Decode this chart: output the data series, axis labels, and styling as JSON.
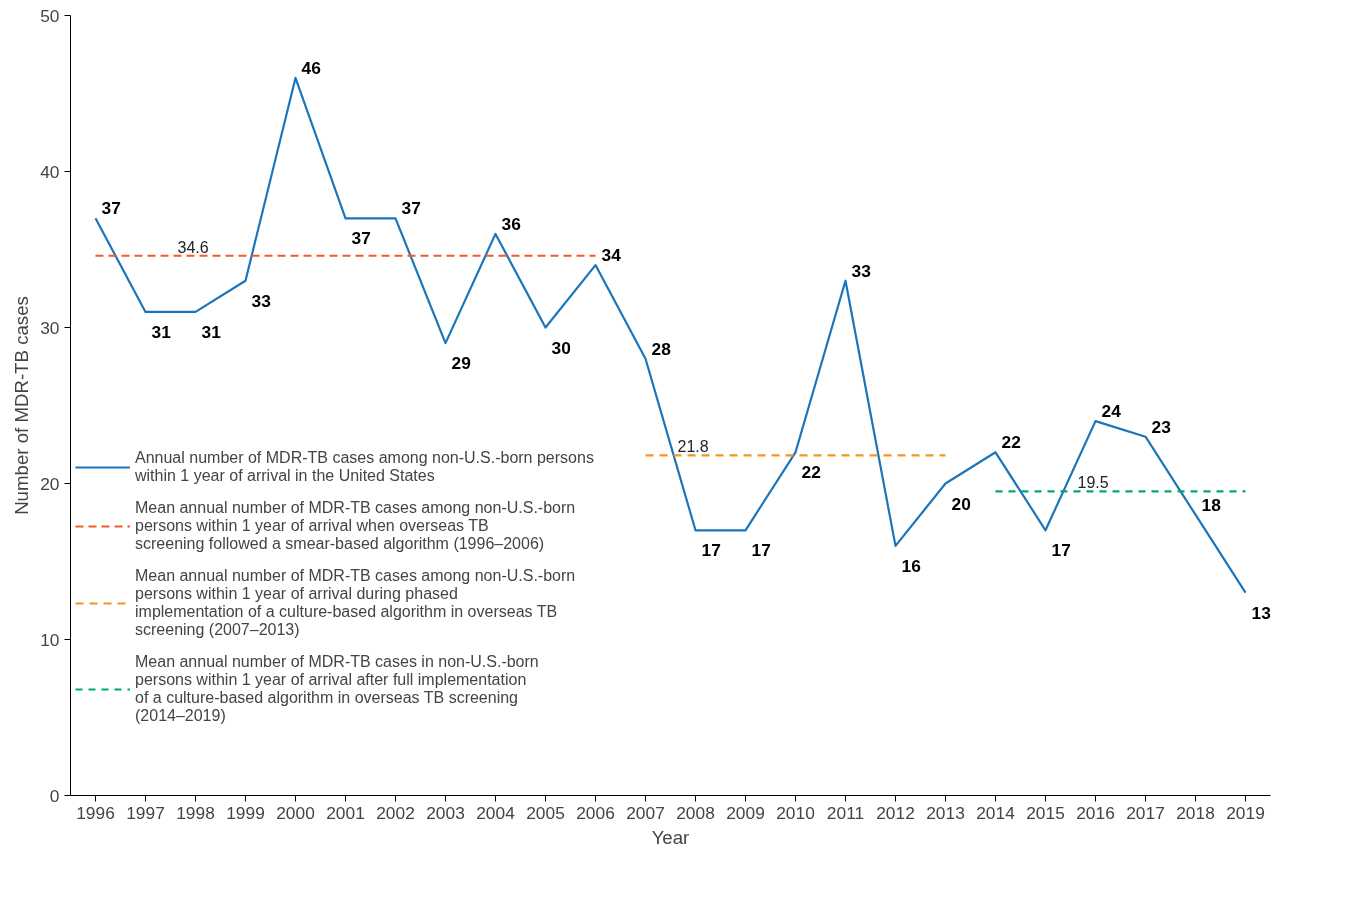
{
  "chart_data": {
    "type": "line",
    "xlabel": "Year",
    "ylabel": "Number of MDR-TB cases",
    "categories": [
      "1996",
      "1997",
      "1998",
      "1999",
      "2000",
      "2001",
      "2002",
      "2003",
      "2004",
      "2005",
      "2006",
      "2007",
      "2008",
      "2009",
      "2010",
      "2011",
      "2012",
      "2013",
      "2014",
      "2015",
      "2016",
      "2017",
      "2018",
      "2019"
    ],
    "ylim": [
      0,
      50
    ],
    "yticks": [
      0,
      10,
      20,
      30,
      40,
      50
    ],
    "grid": false,
    "legend": "left",
    "marker": "none",
    "series": [
      {
        "name": "Annual number of MDR-TB cases among non-U.S.-born persons within 1 year of arrival in the United States",
        "color": "#1b75bb",
        "line_style": "solid",
        "values": [
          37,
          31,
          31,
          33,
          46,
          37,
          37,
          29,
          36,
          30,
          34,
          28,
          17,
          17,
          22,
          33,
          16,
          20,
          22,
          17,
          24,
          23,
          18,
          13
        ],
        "value_labels": [
          "37",
          "31",
          "31",
          "33",
          "46",
          "37",
          "37",
          "29",
          "36",
          "30",
          "34",
          "28",
          "17",
          "17",
          "22",
          "33",
          "16",
          "20",
          "22",
          "17",
          "24",
          "23",
          "18",
          "13"
        ]
      },
      {
        "name": "Mean annual number of MDR-TB cases among non-U.S.-born persons within 1 year of arrival when overseas TB screening followed a smear-based algorithm (1996–2006)",
        "color": "#f15a29",
        "line_style": "dashed",
        "values": [
          34.6,
          34.6,
          34.6,
          34.6,
          34.6,
          34.6,
          34.6,
          34.6,
          34.6,
          34.6,
          34.6,
          null,
          null,
          null,
          null,
          null,
          null,
          null,
          null,
          null,
          null,
          null,
          null,
          null
        ]
      },
      {
        "name": "Mean annual number of MDR-TB cases among non-U.S.-born persons within 1 year of arrival during phased implementation of a culture-based algorithm in overseas TB screening (2007–2013)",
        "color": "#f7941d",
        "line_style": "dashed",
        "values": [
          null,
          null,
          null,
          null,
          null,
          null,
          null,
          null,
          null,
          null,
          null,
          21.8,
          21.8,
          21.8,
          21.8,
          21.8,
          21.8,
          21.8,
          null,
          null,
          null,
          null,
          null,
          null
        ]
      },
      {
        "name": "Mean annual number of MDR-TB cases in non-U.S.-born persons within 1 year of arrival after full implementation of a culture-based algorithm in overseas TB screening (2014–2019)",
        "color": "#00a870",
        "line_style": "dashed",
        "values": [
          null,
          null,
          null,
          null,
          null,
          null,
          null,
          null,
          null,
          null,
          null,
          null,
          null,
          null,
          null,
          null,
          null,
          null,
          19.5,
          19.5,
          19.5,
          19.5,
          19.5,
          19.5
        ]
      }
    ],
    "annotations": [
      {
        "text": "34.6",
        "x": "1998",
        "y": 34.6
      },
      {
        "text": "21.8",
        "x": "2008",
        "y": 21.8
      },
      {
        "text": "19.5",
        "x": "2016",
        "y": 19.5
      }
    ]
  }
}
